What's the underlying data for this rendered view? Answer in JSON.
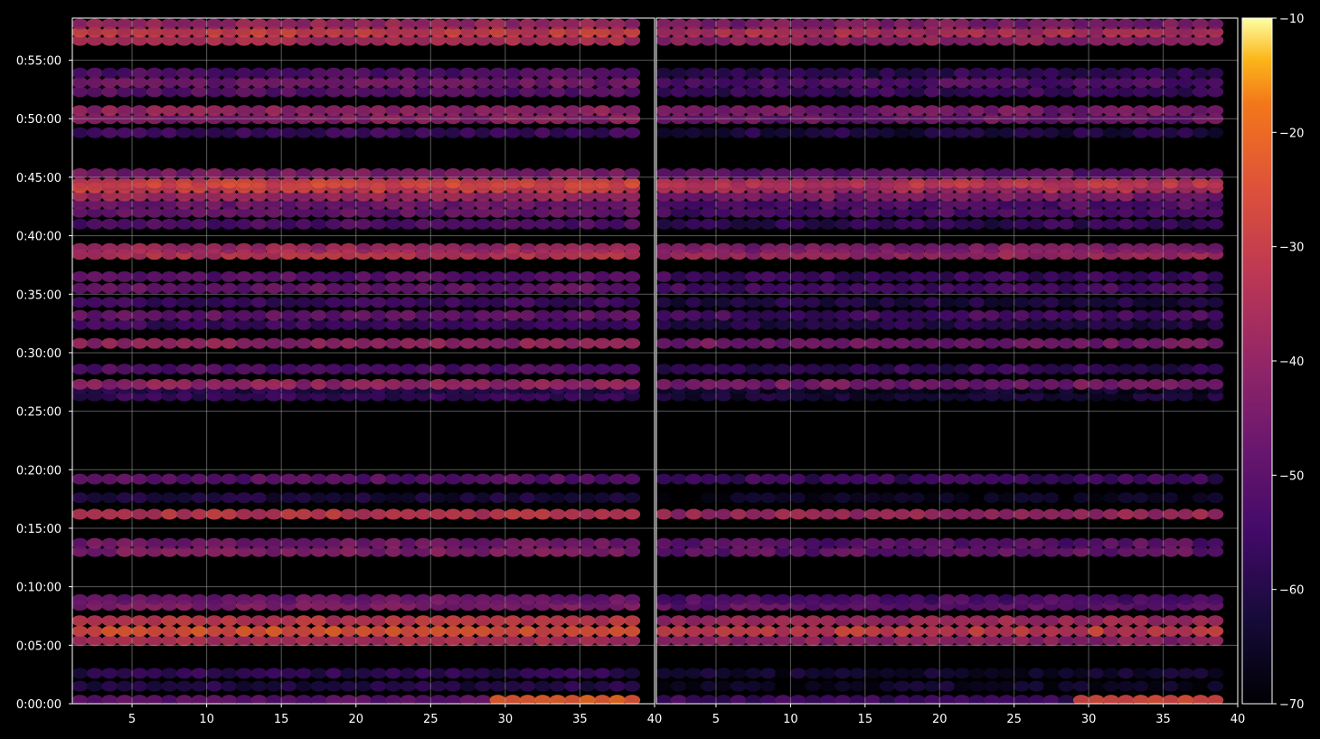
{
  "chart_data": {
    "type": "heatmap",
    "panels": [
      {
        "name": "",
        "x_ticks": [
          "5",
          "10",
          "15",
          "20",
          "25",
          "30",
          "35",
          "40"
        ],
        "x_tick_values": [
          5,
          10,
          15,
          20,
          25,
          30,
          35,
          40
        ],
        "xlim": [
          1,
          40
        ]
      },
      {
        "name": "",
        "x_ticks": [
          "5",
          "10",
          "15",
          "20",
          "25",
          "30",
          "35",
          "40"
        ],
        "x_tick_values": [
          5,
          10,
          15,
          20,
          25,
          30,
          35,
          40
        ],
        "xlim": [
          1,
          40
        ]
      }
    ],
    "y_ticks": [
      "0:00:00",
      "0:05:00",
      "0:10:00",
      "0:15:00",
      "0:20:00",
      "0:25:00",
      "0:30:00",
      "0:35:00",
      "0:40:00",
      "0:45:00",
      "0:50:00",
      "0:55:00"
    ],
    "y_tick_minutes": [
      0,
      5,
      10,
      15,
      20,
      25,
      30,
      35,
      40,
      45,
      50,
      55
    ],
    "ylim_minutes": [
      0,
      58.6
    ],
    "grid": true,
    "colorbar": {
      "ticks": [
        "−10",
        "−20",
        "−30",
        "−40",
        "−50",
        "−60",
        "−70"
      ],
      "tick_values": [
        -10,
        -20,
        -30,
        -40,
        -50,
        -60,
        -70
      ],
      "range": [
        -70,
        -10
      ],
      "colormap": "inferno"
    },
    "bands": [
      {
        "t": 0.3,
        "level": -50,
        "hot_from": 29,
        "hot_level": -22
      },
      {
        "t": 1.5,
        "level": -60
      },
      {
        "t": 2.6,
        "level": -58
      },
      {
        "t": 5.4,
        "level": -35
      },
      {
        "t": 6.2,
        "level": -25
      },
      {
        "t": 7.1,
        "level": -32
      },
      {
        "t": 8.4,
        "level": -43
      },
      {
        "t": 8.9,
        "level": -47
      },
      {
        "t": 13.0,
        "level": -43
      },
      {
        "t": 13.7,
        "level": -45
      },
      {
        "t": 16.2,
        "level": -32
      },
      {
        "t": 17.6,
        "level": -62
      },
      {
        "t": 19.2,
        "level": -50
      },
      {
        "t": 26.3,
        "level": -57
      },
      {
        "t": 26.9,
        "level": -60
      },
      {
        "t": 27.3,
        "level": -40
      },
      {
        "t": 28.6,
        "level": -52
      },
      {
        "t": 30.8,
        "level": -40
      },
      {
        "t": 32.4,
        "level": -55
      },
      {
        "t": 33.2,
        "level": -48
      },
      {
        "t": 34.3,
        "level": -55
      },
      {
        "t": 35.5,
        "level": -48
      },
      {
        "t": 36.5,
        "level": -50
      },
      {
        "t": 38.4,
        "level": -33
      },
      {
        "t": 38.9,
        "level": -38
      },
      {
        "t": 41.0,
        "level": -52
      },
      {
        "t": 42.0,
        "level": -48
      },
      {
        "t": 42.7,
        "level": -46
      },
      {
        "t": 43.4,
        "level": -38
      },
      {
        "t": 44.1,
        "level": -30
      },
      {
        "t": 44.5,
        "level": -28
      },
      {
        "t": 45.3,
        "level": -44
      },
      {
        "t": 48.8,
        "level": -55
      },
      {
        "t": 50.0,
        "level": -42
      },
      {
        "t": 50.7,
        "level": -40
      },
      {
        "t": 52.3,
        "level": -50
      },
      {
        "t": 53.1,
        "level": -46
      },
      {
        "t": 53.9,
        "level": -52
      },
      {
        "t": 56.7,
        "level": -35
      },
      {
        "t": 57.4,
        "level": -30
      },
      {
        "t": 58.1,
        "level": -38
      }
    ]
  }
}
